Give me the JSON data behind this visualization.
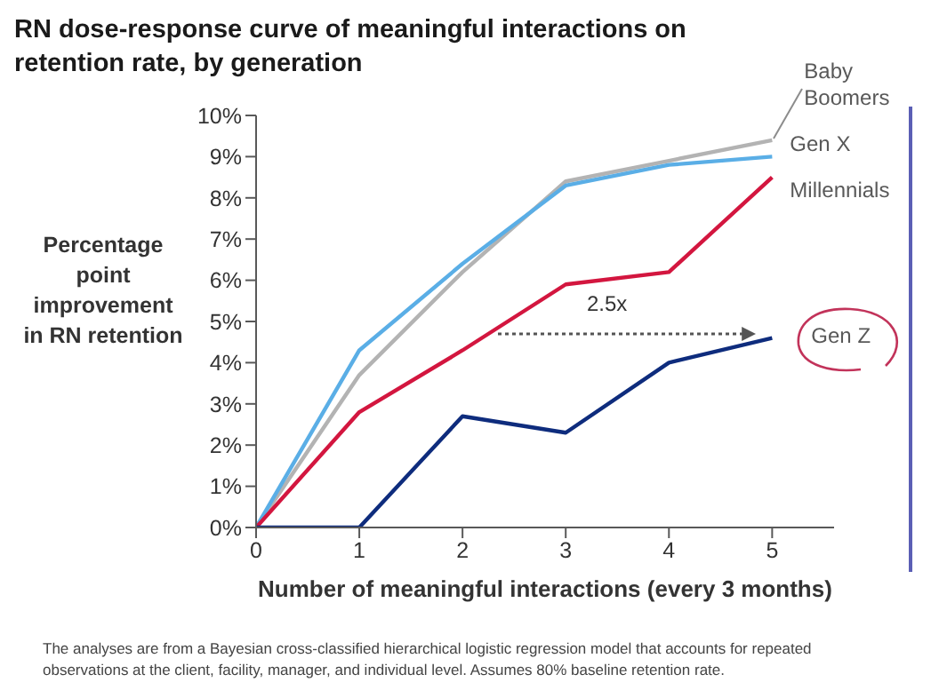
{
  "chart_data": {
    "type": "line",
    "title": "RN dose-response curve of meaningful interactions on retention rate, by generation",
    "xlabel": "Number of meaningful interactions (every 3 months)",
    "ylabel": "Percentage point improvement in RN retention",
    "x": [
      0,
      1,
      2,
      3,
      4,
      5
    ],
    "series": [
      {
        "name": "Baby Boomers",
        "color": "#b3b3b3",
        "values": [
          0,
          3.7,
          6.2,
          8.4,
          8.9,
          9.4
        ]
      },
      {
        "name": "Gen X",
        "color": "#5aaee6",
        "values": [
          0,
          4.3,
          6.4,
          8.3,
          8.8,
          9.0
        ]
      },
      {
        "name": "Millennials",
        "color": "#d3163f",
        "values": [
          0,
          2.8,
          4.3,
          5.9,
          6.2,
          8.5
        ]
      },
      {
        "name": "Gen Z",
        "color": "#0e2c7d",
        "values": [
          0,
          0,
          2.7,
          2.3,
          4.0,
          4.6
        ]
      }
    ],
    "xlim": [
      0,
      5.6
    ],
    "xticks": [
      0,
      1,
      2,
      3,
      4,
      5
    ],
    "ylim": [
      0,
      10
    ],
    "yticks": [
      {
        "value": 0,
        "label": "0%"
      },
      {
        "value": 1,
        "label": "1%"
      },
      {
        "value": 2,
        "label": "2%"
      },
      {
        "value": 3,
        "label": "3%"
      },
      {
        "value": 4,
        "label": "4%"
      },
      {
        "value": 5,
        "label": "5%"
      },
      {
        "value": 6,
        "label": "6%"
      },
      {
        "value": 7,
        "label": "7%"
      },
      {
        "value": 8,
        "label": "8%"
      },
      {
        "value": 9,
        "label": "9%"
      },
      {
        "value": 10,
        "label": "10%"
      }
    ],
    "grid": false,
    "legend": false,
    "marker": "none",
    "line_style": "solid",
    "annotations": [
      "2.5x",
      "The analyses are from a Bayesian cross-classified hierarchical logistic regression model that accounts for repeated observations at the client, facility, manager, and individual level. Assumes 80% baseline retention rate."
    ]
  }
}
